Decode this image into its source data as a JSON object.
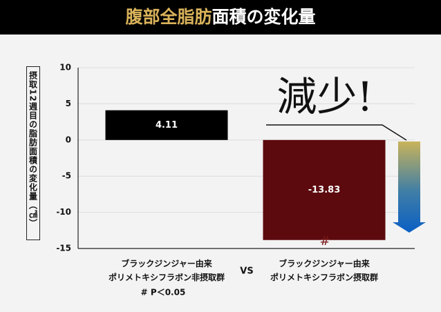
{
  "chart_data": {
    "type": "bar",
    "title_highlight": "腹部全脂肪",
    "title": "面積の変化量",
    "y_label": "摂取12週目の脂肪面積の変化量（㎠）",
    "categories": [
      "ブラックジンジャー由来\nポリメトキシフラボン非摂取群",
      "ブラックジンジャー由来\nポリメトキシフラボン摂取群"
    ],
    "values": [
      4.11,
      -13.83
    ],
    "colors": [
      "#000000",
      "#5c0a0e"
    ],
    "ylim": [
      -15,
      10
    ],
    "yticks": [
      10,
      5,
      0,
      -5,
      -10,
      -15
    ],
    "grid": true,
    "annotation": "減少!",
    "significance_mark": "#",
    "vs_label": "VS",
    "footnote": "# P＜0.05"
  }
}
